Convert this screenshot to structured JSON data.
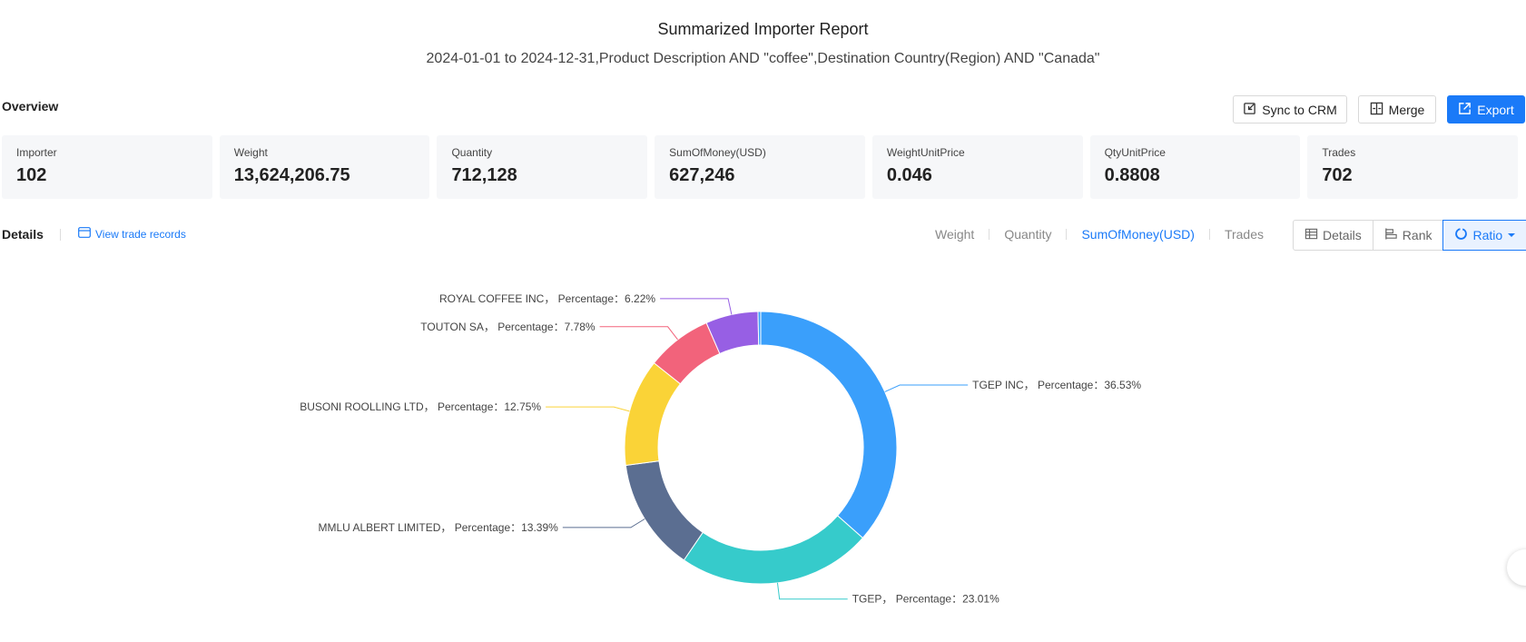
{
  "header": {
    "title": "Summarized Importer Report",
    "subtitle": "2024-01-01 to 2024-12-31,Product Description AND \"coffee\",Destination Country(Region) AND \"Canada\""
  },
  "overview": {
    "label": "Overview",
    "buttons": {
      "sync": "Sync to CRM",
      "merge": "Merge",
      "export": "Export"
    },
    "stats": [
      {
        "label": "Importer",
        "value": "102"
      },
      {
        "label": "Weight",
        "value": "13,624,206.75"
      },
      {
        "label": "Quantity",
        "value": "712,128"
      },
      {
        "label": "SumOfMoney(USD)",
        "value": "627,246"
      },
      {
        "label": "WeightUnitPrice",
        "value": "0.046"
      },
      {
        "label": "QtyUnitPrice",
        "value": "0.8808"
      },
      {
        "label": "Trades",
        "value": "702"
      }
    ]
  },
  "details": {
    "label": "Details",
    "view_records": "View trade records",
    "metric_tabs": [
      "Weight",
      "Quantity",
      "SumOfMoney(USD)",
      "Trades"
    ],
    "active_metric": "SumOfMoney(USD)",
    "view_buttons": [
      "Details",
      "Rank",
      "Ratio"
    ],
    "active_view": "Ratio"
  },
  "chart_data": {
    "type": "pie",
    "style": "donut",
    "label_format": "{name}， Percentage：{value}%",
    "slices": [
      {
        "name": "TGEP INC",
        "value": 36.53,
        "color": "#3a9ffb"
      },
      {
        "name": "TGEP",
        "value": 23.01,
        "color": "#36cbcb"
      },
      {
        "name": "MMLU ALBERT LIMITED",
        "value": 13.39,
        "color": "#5b6e91"
      },
      {
        "name": "BUSONI ROOLLING LTD",
        "value": 12.75,
        "color": "#fad337"
      },
      {
        "name": "TOUTON SA",
        "value": 7.78,
        "color": "#f2637b"
      },
      {
        "name": "ROYAL COFFEE INC",
        "value": 6.22,
        "color": "#975fe4"
      },
      {
        "name": "",
        "value": 0.32,
        "color": "#3a9ffb"
      }
    ]
  }
}
